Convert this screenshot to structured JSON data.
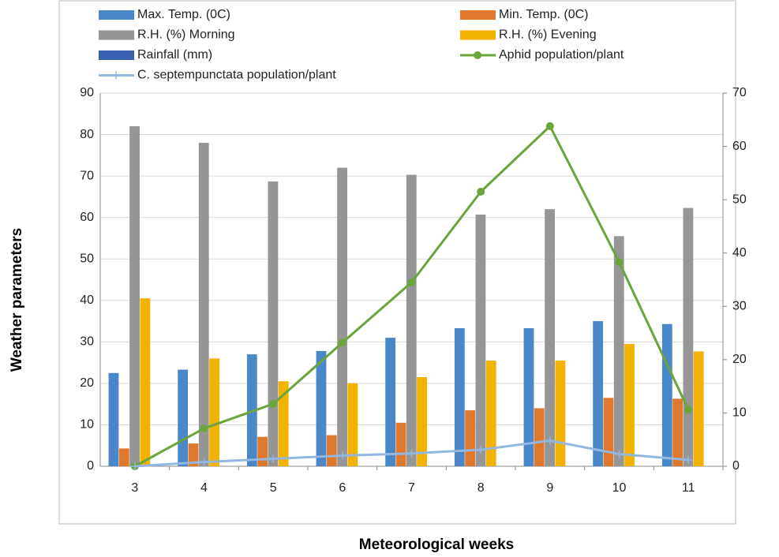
{
  "chart_data": {
    "type": "bar",
    "x_label": "Meteorological weeks",
    "y_label": "Weather parameters",
    "categories": [
      "3",
      "4",
      "5",
      "6",
      "7",
      "8",
      "9",
      "10",
      "11"
    ],
    "series": [
      {
        "name": "Max. Temp. (0C)",
        "color": "#4a87c8",
        "values": [
          22.5,
          23.3,
          27,
          27.8,
          31,
          33.3,
          33.3,
          35,
          34.3
        ]
      },
      {
        "name": "Min. Temp. (0C)",
        "color": "#e0782e",
        "values": [
          4.3,
          5.5,
          7.1,
          7.5,
          10.5,
          13.5,
          14,
          16.5,
          16.3
        ]
      },
      {
        "name": "R.H. (%) Morning",
        "color": "#969696",
        "values": [
          82,
          78,
          68.7,
          72,
          70.3,
          60.7,
          62,
          55.5,
          62.3
        ]
      },
      {
        "name": "R.H. (%) Evening",
        "color": "#f1b200",
        "values": [
          40.5,
          26,
          20.5,
          20,
          21.5,
          25.5,
          25.5,
          29.5,
          27.7
        ]
      },
      {
        "name": "Rainfall (mm)",
        "color": "#3a5fb0",
        "values": [
          0,
          0,
          0,
          0,
          0,
          0,
          0,
          0,
          0
        ]
      },
      {
        "name": "Aphid population/plant",
        "type": "line",
        "marker": "circle",
        "axis": "y2",
        "color": "#6aa53c",
        "values": [
          0,
          7.1,
          11.7,
          23.2,
          34.5,
          51.5,
          63.8,
          38.3,
          10.6
        ]
      },
      {
        "name": "C. septempunctata population/plant",
        "type": "line",
        "marker": "plus",
        "axis": "y2",
        "color": "#93b7e0",
        "values": [
          0,
          0.8,
          1.4,
          2,
          2.4,
          3.1,
          4.8,
          2.3,
          1.2
        ]
      }
    ],
    "ylim": [
      0,
      90
    ],
    "yticks": [
      0,
      10,
      20,
      30,
      40,
      50,
      60,
      70,
      80,
      90
    ],
    "y2lim": [
      0,
      70
    ],
    "y2ticks": [
      0,
      10,
      20,
      30,
      40,
      50,
      60,
      70
    ],
    "grid": true
  }
}
